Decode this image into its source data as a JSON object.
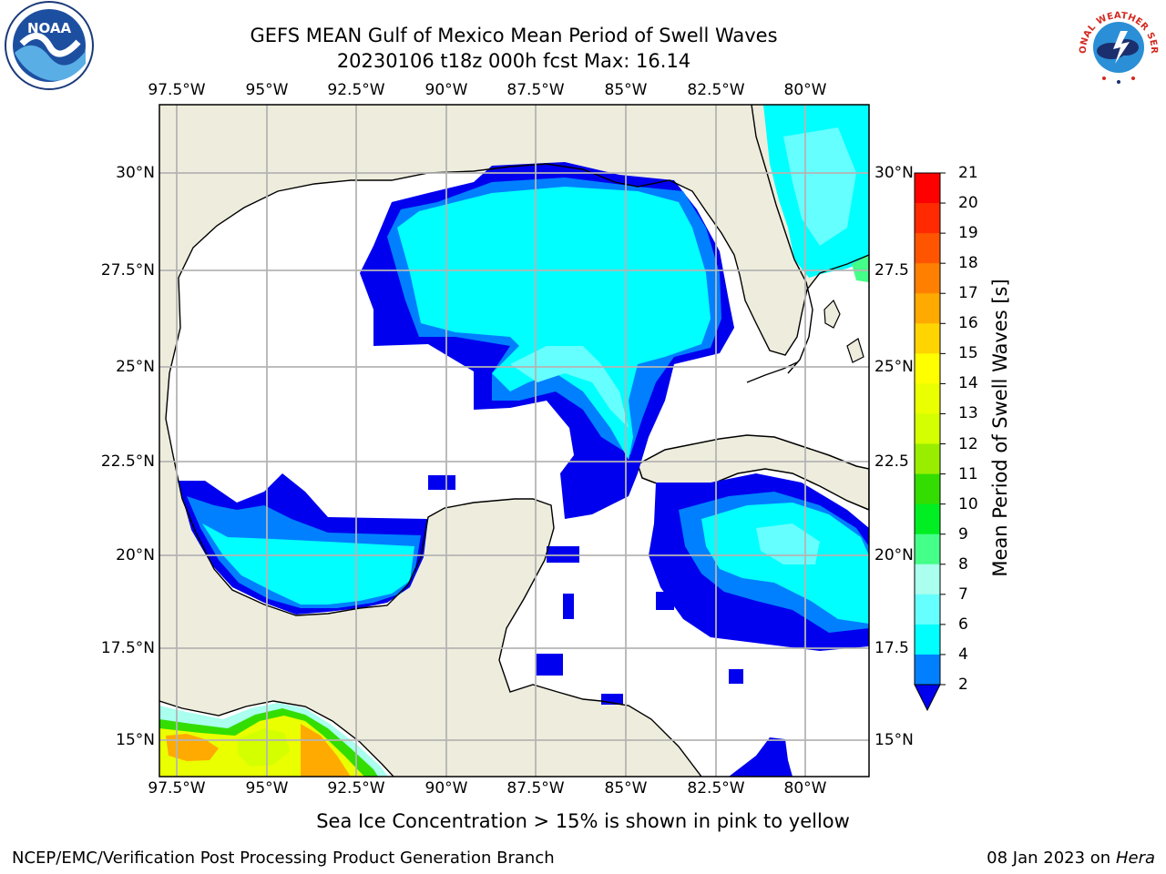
{
  "title_line1": "GEFS MEAN Gulf of Mexico Mean Period of Swell Waves",
  "title_line2": "20230106 t18z 000h fcst   Max: 16.14",
  "subtitle": "Sea Ice Concentration > 15% is shown in pink to yellow",
  "footer_left": "NCEP/EMC/Verification Post Processing Product Generation Branch",
  "footer_date": "08 Jan 2023 on ",
  "footer_host": "Hera",
  "lon_labels": [
    "97.5°W",
    "95°W",
    "92.5°W",
    "90°W",
    "87.5°W",
    "85°W",
    "82.5°W",
    "80°W"
  ],
  "lat_labels": [
    "30°N",
    "27.5°N",
    "25°N",
    "22.5°N",
    "20°N",
    "17.5°N",
    "15°N"
  ],
  "lat_labels_right": [
    "30°N",
    "27.5",
    "25°N",
    "22.5",
    "20°N",
    "17.5",
    "15°N"
  ],
  "colorbar": {
    "label": "Mean Period of Swell Waves [s]",
    "ticks": [
      "21",
      "20",
      "19",
      "18",
      "17",
      "16",
      "15",
      "14",
      "13",
      "12",
      "11",
      "10",
      "9",
      "8",
      "7",
      "6",
      "4",
      "2"
    ],
    "colors": [
      "#ff0000",
      "#ff2a00",
      "#ff5500",
      "#ff8000",
      "#ffaa00",
      "#ffd400",
      "#ffff00",
      "#eaff00",
      "#d4ff00",
      "#99ee00",
      "#33dd00",
      "#00ee22",
      "#44ff88",
      "#aaffee",
      "#66ffff",
      "#00ffff",
      "#0080ff",
      "#0000ee"
    ]
  },
  "logos": {
    "left": "noaa-logo",
    "right": "nws-logo",
    "left_text": "NOAA",
    "nws_text": "NATIONAL WEATHER SERVICE"
  },
  "map_colors": {
    "land": "#eeecdc",
    "ocean": "#ffffff",
    "grid": "#b4b4b4",
    "coast": "#000000"
  }
}
